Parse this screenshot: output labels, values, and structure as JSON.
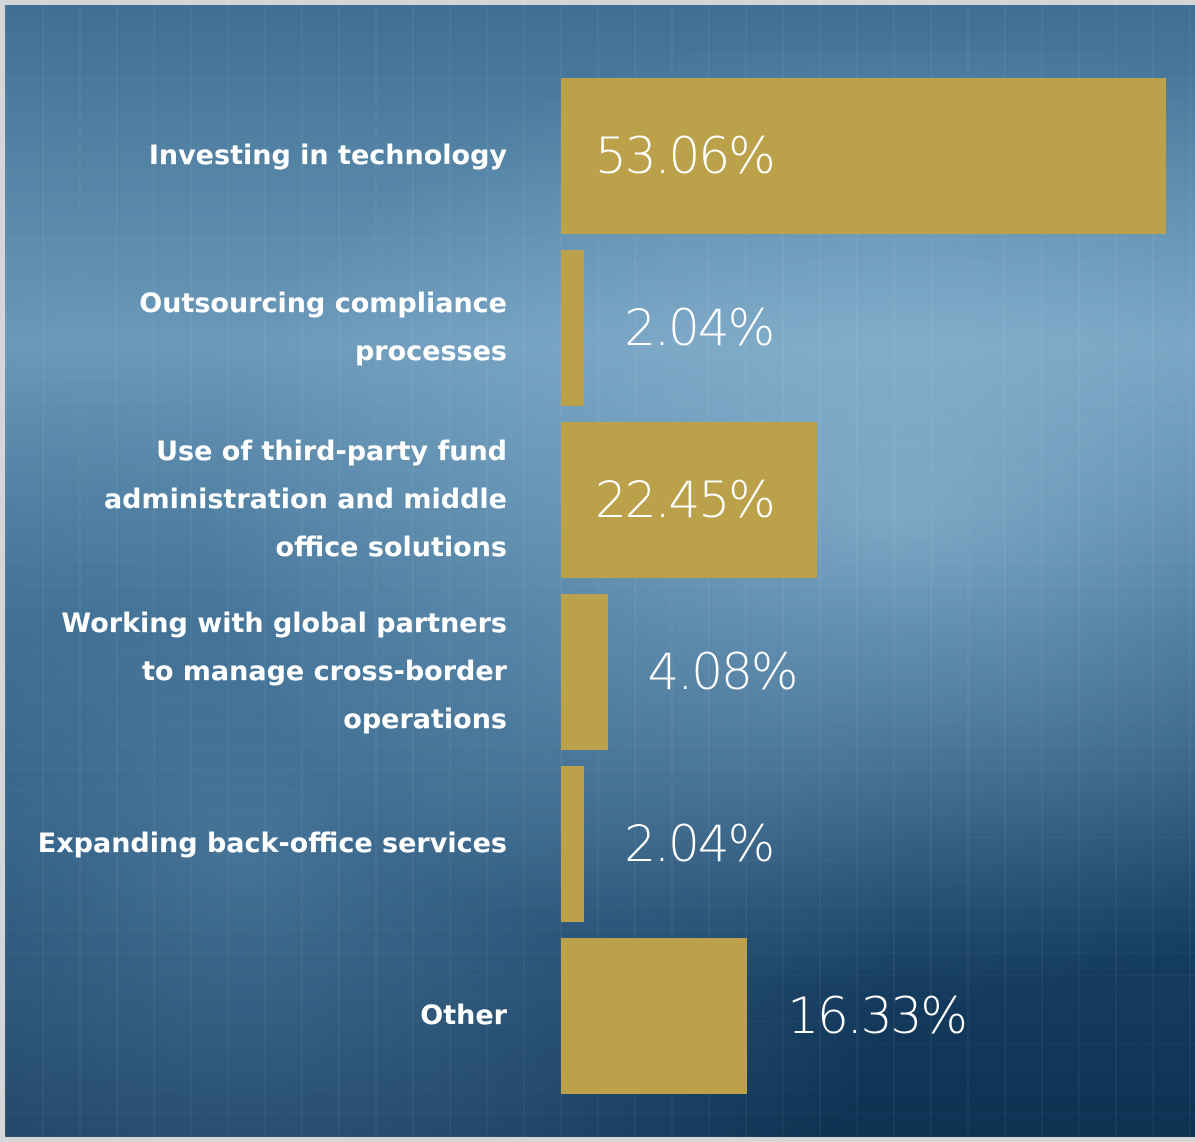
{
  "chart_data": {
    "type": "bar",
    "orientation": "horizontal",
    "categories": [
      "Investing in technology",
      "Outsourcing compliance processes",
      "Use of third-party fund administration and middle office solutions",
      "Working with global partners to manage cross-border operations",
      "Expanding back-office services",
      "Other"
    ],
    "values": [
      53.06,
      2.04,
      22.45,
      4.08,
      2.04,
      16.33
    ],
    "value_labels": [
      "53.06%",
      "2.04%",
      "22.45%",
      "4.08%",
      "2.04%",
      "16.33%"
    ],
    "color": "#bca14b"
  }
}
